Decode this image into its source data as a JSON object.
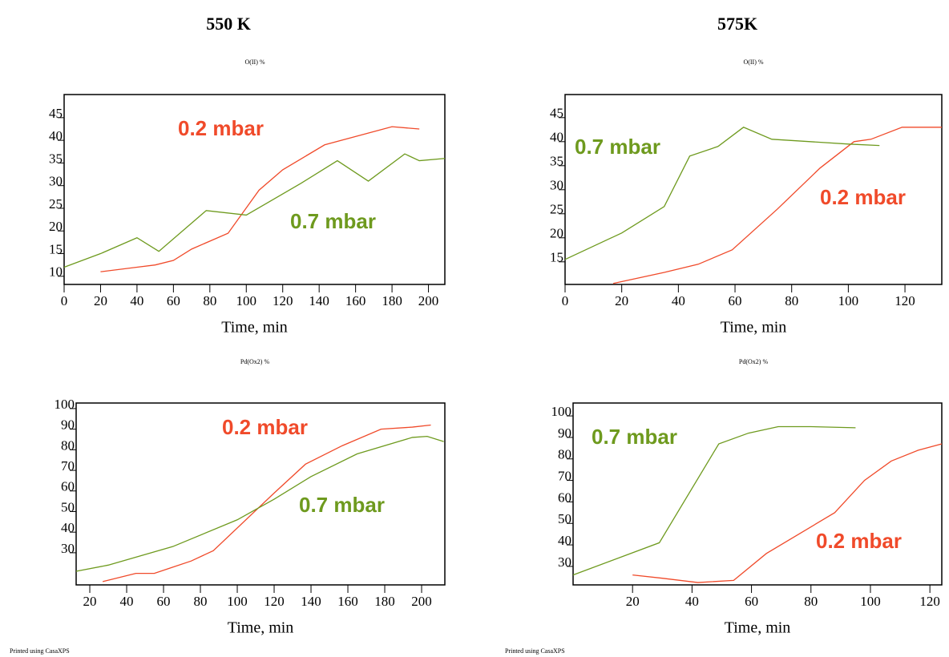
{
  "headings": [
    "550 K",
    "575K"
  ],
  "footers": [
    "Printed using CasaXPS",
    "Printed using CasaXPS"
  ],
  "chart_data": [
    {
      "type": "line",
      "title": "O(II) %",
      "xlabel": "Time, min",
      "xlim": [
        0,
        209
      ],
      "xticks": [
        0,
        20,
        40,
        60,
        80,
        100,
        120,
        140,
        160,
        180,
        200
      ],
      "ylim": [
        8.2,
        50.1
      ],
      "yticks": [
        10,
        15,
        20,
        25,
        30,
        35,
        40,
        45
      ],
      "series": [
        {
          "name": "0.2 mbar",
          "color": "#f04a2a",
          "x": [
            20,
            40,
            50,
            60,
            70,
            90,
            107,
            120,
            143,
            180,
            195
          ],
          "values": [
            11,
            12,
            12.5,
            13.5,
            16,
            19.5,
            29,
            33.5,
            39,
            43,
            42.5
          ]
        },
        {
          "name": "0.7 mbar",
          "color": "#6e9a1e",
          "x": [
            0,
            20,
            40,
            52,
            78,
            100,
            130,
            150,
            167,
            187,
            195,
            209
          ],
          "values": [
            12,
            15,
            18.5,
            15.5,
            24.5,
            23.5,
            30.5,
            35.5,
            31,
            37,
            35.5,
            36
          ]
        }
      ]
    },
    {
      "type": "line",
      "title": "O(II) %",
      "xlabel": "Time, min",
      "xlim": [
        0,
        133
      ],
      "xticks": [
        0,
        20,
        40,
        60,
        80,
        100,
        120
      ],
      "ylim": [
        10.3,
        49.8
      ],
      "yticks": [
        15,
        20,
        25,
        30,
        35,
        40,
        45
      ],
      "series": [
        {
          "name": "0.2 mbar",
          "color": "#f04a2a",
          "x": [
            17,
            35,
            47,
            59,
            75,
            90,
            102,
            108,
            119,
            133
          ],
          "values": [
            10.5,
            12.8,
            14.5,
            17.5,
            26,
            34.5,
            40,
            40.5,
            43,
            43
          ]
        },
        {
          "name": "0.7 mbar",
          "color": "#6e9a1e",
          "x": [
            0,
            20,
            35,
            44,
            54,
            63,
            73,
            100,
            111
          ],
          "values": [
            15.5,
            21,
            26.5,
            37,
            39,
            43,
            40.5,
            39.5,
            39.2
          ]
        }
      ]
    },
    {
      "type": "line",
      "title": "Pd(Ox2) %",
      "xlabel": "Time, min",
      "xlim": [
        12.6,
        212.6
      ],
      "xticks": [
        20,
        40,
        60,
        80,
        100,
        120,
        140,
        160,
        180,
        200
      ],
      "ylim": [
        14.4,
        102.7
      ],
      "yticks": [
        30,
        40,
        50,
        60,
        70,
        80,
        90,
        100
      ],
      "series": [
        {
          "name": "0.2 mbar",
          "color": "#f04a2a",
          "x": [
            27,
            45,
            55,
            65,
            75,
            87,
            120,
            137,
            157,
            178,
            195,
            205
          ],
          "values": [
            16,
            20,
            20,
            23,
            26,
            31,
            59,
            73,
            82,
            90,
            91,
            92
          ]
        },
        {
          "name": "0.7 mbar",
          "color": "#6e9a1e",
          "x": [
            12.6,
            30,
            65,
            100,
            120,
            140,
            165,
            195,
            203,
            212
          ],
          "values": [
            21,
            24,
            33,
            46,
            56,
            67,
            78,
            86,
            86.5,
            84
          ]
        }
      ]
    },
    {
      "type": "line",
      "title": "Pd(Ox2) %",
      "xlabel": "Time, min",
      "xlim": [
        0,
        124
      ],
      "xticks": [
        20,
        40,
        60,
        80,
        100,
        120
      ],
      "ylim": [
        21.4,
        106
      ],
      "yticks": [
        30,
        40,
        50,
        60,
        70,
        80,
        90,
        100
      ],
      "series": [
        {
          "name": "0.2 mbar",
          "color": "#f04a2a",
          "x": [
            20,
            30,
            42,
            54,
            65,
            88,
            98,
            107,
            116,
            124
          ],
          "values": [
            26,
            24.5,
            22.5,
            23.5,
            36,
            55,
            70,
            79,
            84,
            87
          ]
        },
        {
          "name": "0.7 mbar",
          "color": "#6e9a1e",
          "x": [
            0,
            29,
            49,
            59,
            69,
            80,
            95
          ],
          "values": [
            26,
            41,
            87,
            92,
            95,
            95,
            94.5
          ]
        }
      ]
    }
  ]
}
